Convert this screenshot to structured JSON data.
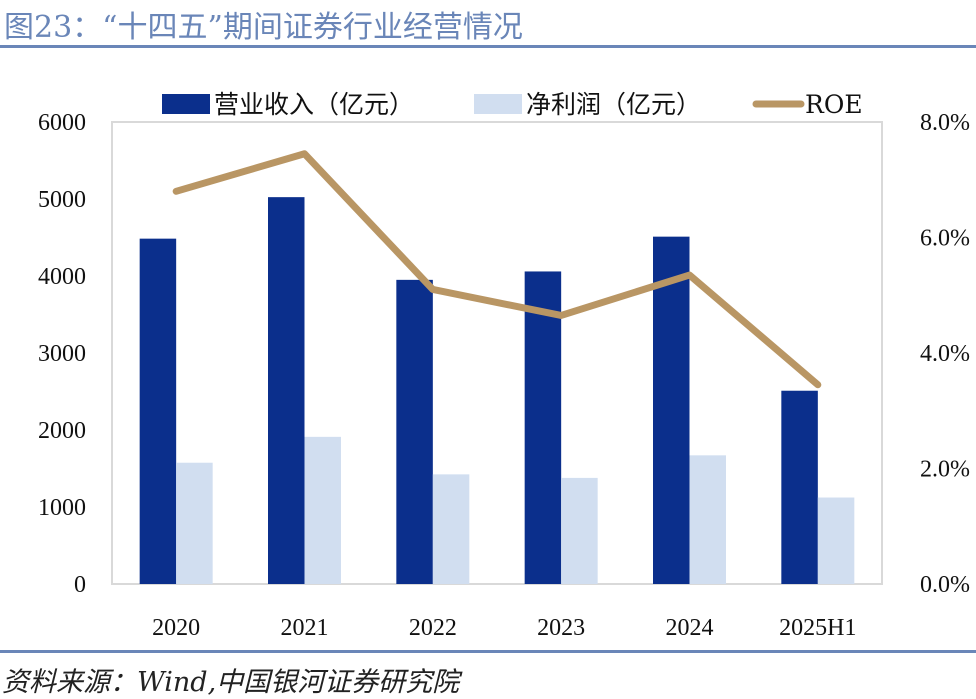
{
  "title": "图23：“十四五”期间证券行业经营情况",
  "source": "资料来源：Wind,中国银河证券研究院",
  "colors": {
    "revenue": "#0B2F8C",
    "net_profit": "#D1DEF0",
    "roe": "#B99664",
    "rule": "#6A86B8",
    "axis": "#D9D9D9"
  },
  "chart_data": {
    "type": "bar",
    "title": "“十四五”期间证券行业经营情况",
    "categories": [
      "2020",
      "2021",
      "2022",
      "2023",
      "2024",
      "2025H1"
    ],
    "series": [
      {
        "name": "营业收入（亿元）",
        "type": "bar",
        "axis": "left",
        "values": [
          4485,
          5024,
          3950,
          4059,
          4511,
          2510
        ]
      },
      {
        "name": "净利润（亿元）",
        "type": "bar",
        "axis": "left",
        "values": [
          1575,
          1911,
          1424,
          1378,
          1671,
          1123
        ]
      },
      {
        "name": "ROE",
        "type": "line",
        "axis": "right",
        "values": [
          6.8,
          7.45,
          5.1,
          4.65,
          5.35,
          3.45
        ],
        "unit": "%"
      }
    ],
    "left_axis": {
      "ylim": [
        0,
        6000
      ],
      "ticks": [
        "0",
        "1000",
        "2000",
        "3000",
        "4000",
        "5000",
        "6000"
      ],
      "label": ""
    },
    "right_axis": {
      "ylim": [
        0,
        8
      ],
      "ticks": [
        "0.0%",
        "2.0%",
        "4.0%",
        "6.0%",
        "8.0%"
      ],
      "label": ""
    },
    "xlabel": "",
    "grid": false,
    "legend_position": "top"
  }
}
